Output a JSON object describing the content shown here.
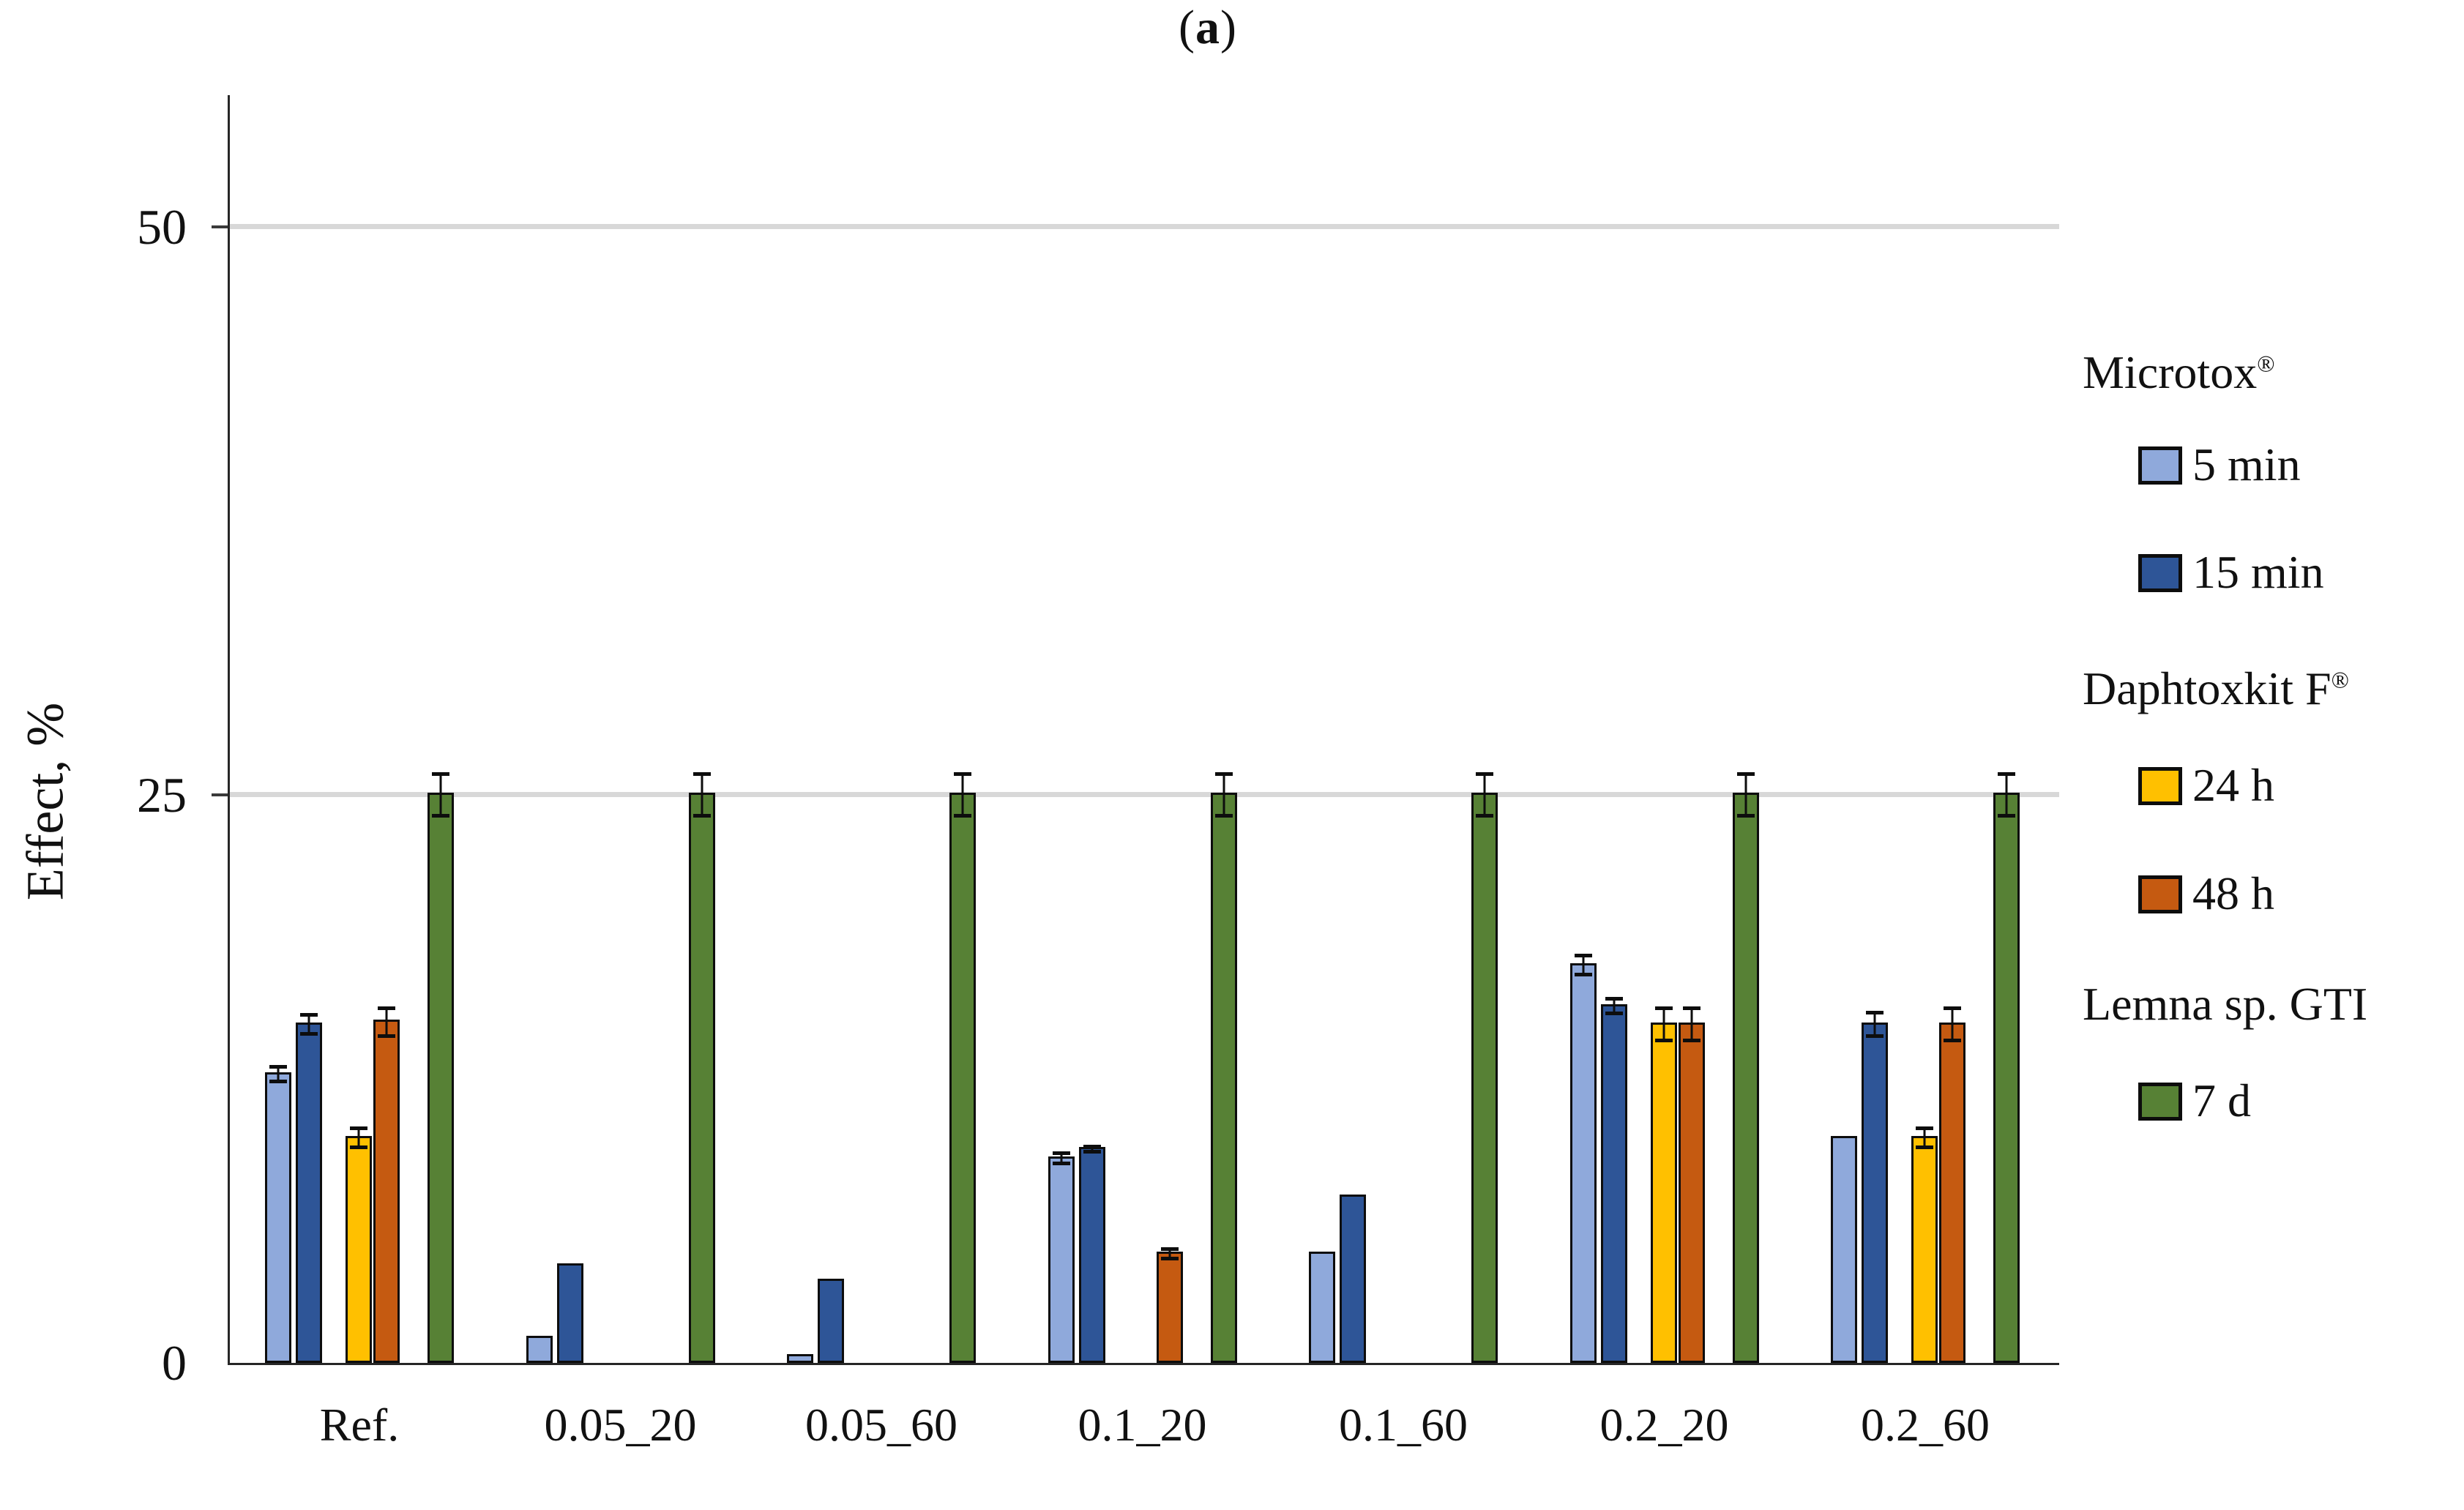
{
  "title_parts": {
    "open": "(",
    "letter": "a",
    "close": ")"
  },
  "chart_data": {
    "type": "bar",
    "title": "(a)",
    "xlabel": "",
    "ylabel": "Effect, %",
    "ylim": [
      0,
      55.8
    ],
    "grid": true,
    "gridlines_at": [
      25,
      50
    ],
    "ytick_labels": [
      "0",
      "25",
      "50"
    ],
    "legend_position": "right",
    "categories": [
      "Ref.",
      "0.05_20",
      "0.05_60",
      "0.1_20",
      "0.1_60",
      "0.2_20",
      "0.2_60"
    ],
    "series": [
      {
        "name": "5 min",
        "group": "Microtox®",
        "color": "#8FA9DB",
        "values": [
          12.7,
          1.1,
          0.3,
          9.0,
          4.8,
          17.5,
          9.9
        ],
        "errors": [
          0.4,
          0,
          0,
          0.3,
          0,
          0.5,
          0
        ]
      },
      {
        "name": "15 min",
        "group": "Microtox®",
        "color": "#2E5597",
        "values": [
          14.9,
          4.3,
          3.6,
          9.4,
          7.3,
          15.7,
          14.9
        ],
        "errors": [
          0.5,
          0,
          0,
          0.2,
          0,
          0.4,
          0.6
        ]
      },
      {
        "name": "24 h",
        "group": "Daphtoxkit F®",
        "color": "#FFC000",
        "values": [
          9.9,
          0,
          0,
          0,
          0,
          14.9,
          9.9
        ],
        "errors": [
          0.5,
          0,
          0,
          0,
          0,
          0.8,
          0.5
        ]
      },
      {
        "name": "48 h",
        "group": "Daphtoxkit F®",
        "color": "#C55A11",
        "values": [
          15.0,
          0,
          0,
          4.8,
          0,
          14.9,
          14.9
        ],
        "errors": [
          0.7,
          0,
          0,
          0.3,
          0,
          0.8,
          0.8
        ]
      },
      {
        "name": "7 d",
        "group": "Lemna sp. GTI",
        "color": "#578135",
        "values": [
          25,
          25,
          25,
          25,
          25,
          25,
          25
        ],
        "errors": [
          1.0,
          1.0,
          1.0,
          1.0,
          1.0,
          1.0,
          1.0
        ]
      }
    ],
    "legend": {
      "header1": "Microtox",
      "sup1": "®",
      "header2": "Daphtoxkit F",
      "sup2": "®",
      "header3": "Lemna sp. GTI",
      "sup3": ""
    }
  },
  "axis": {
    "ytick_0": "0",
    "ytick_25": "25",
    "ytick_50": "50"
  }
}
